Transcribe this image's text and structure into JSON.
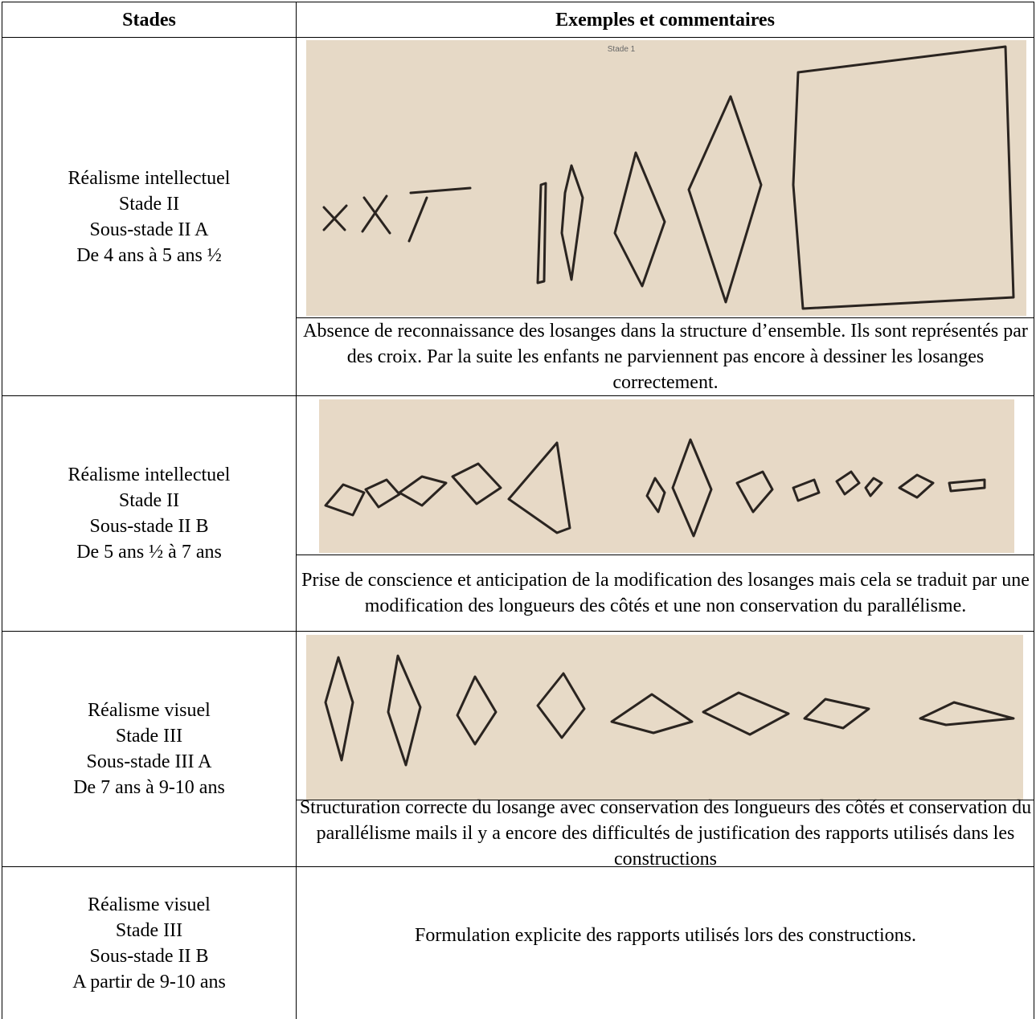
{
  "table": {
    "headers": [
      "Stades",
      "Exemples et commentaires"
    ],
    "rows": [
      {
        "stage": [
          "Réalisme intellectuel",
          "Stade II",
          "Sous-stade II A",
          "De 4 ans à 5 ans ½"
        ],
        "image_label": "Stade 1",
        "comment": "Absence de reconnaissance des losanges dans la structure d’ensemble. Ils sont représentés par des croix. Par la suite les enfants ne parviennent pas encore à dessiner les losanges correctement."
      },
      {
        "stage": [
          "Réalisme intellectuel",
          "Stade II",
          "Sous-stade II B",
          "De 5 ans ½ à 7 ans"
        ],
        "comment": "Prise de conscience et anticipation de la modification des losanges mais cela se traduit par une modification des longueurs des côtés et une non conservation du parallélisme."
      },
      {
        "stage": [
          "Réalisme visuel",
          "Stade III",
          "Sous-stade III A",
          "De 7 ans à 9-10 ans"
        ],
        "comment": "Structuration correcte du losange avec conservation des longueurs des côtés et conservation du parallélisme mails il y a encore des difficultés de justification des rapports utilisés dans les constructions"
      },
      {
        "stage": [
          "Réalisme visuel",
          "Stade III",
          "Sous-stade II B",
          "A partir de 9-10 ans"
        ],
        "comment": "Formulation explicite des rapports utilisés lors des constructions."
      }
    ]
  }
}
